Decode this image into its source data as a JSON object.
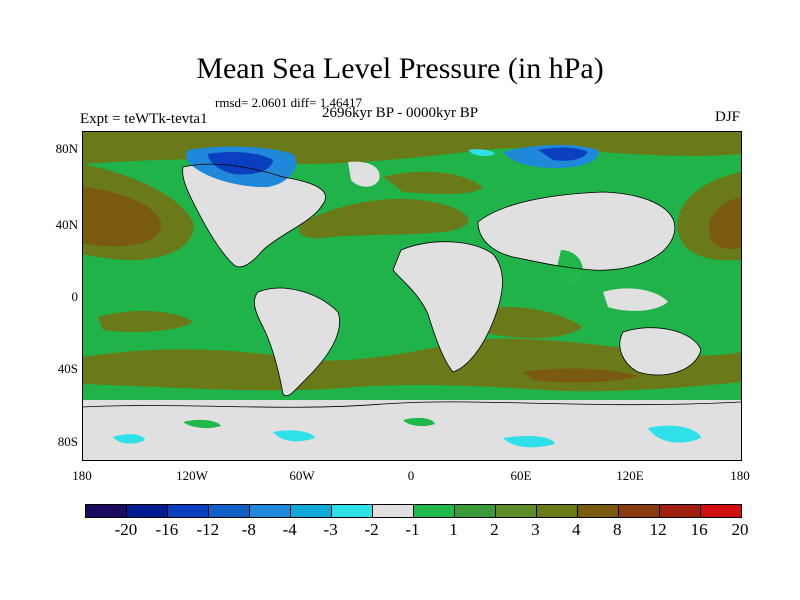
{
  "title": "Mean Sea Level Pressure (in hPa)",
  "stats": "rmsd= 2.0601 diff= 1.46417",
  "period": "2696kyr BP - 0000kyr BP",
  "experiment": "Expt = teWTk-tevta1",
  "season": "DJF",
  "lat_labels": [
    "80N",
    "40N",
    "0",
    "40S",
    "80S"
  ],
  "lon_labels": [
    "180",
    "120W",
    "60W",
    "0",
    "60E",
    "120E",
    "180"
  ],
  "colorbar": {
    "colors": [
      "#1a0a60",
      "#001a90",
      "#0a40c0",
      "#1060c8",
      "#2088d8",
      "#10a8d8",
      "#30e0e8",
      "#e0e0e0",
      "#20b84a",
      "#3a9a38",
      "#5c8c28",
      "#6a7a18",
      "#7a5a10",
      "#8a3a10",
      "#a02010",
      "#d01010"
    ],
    "labels": [
      "-20",
      "-16",
      "-12",
      "-8",
      "-4",
      "-3",
      "-2",
      "-1",
      "1",
      "2",
      "3",
      "4",
      "8",
      "12",
      "16",
      "20"
    ]
  }
}
